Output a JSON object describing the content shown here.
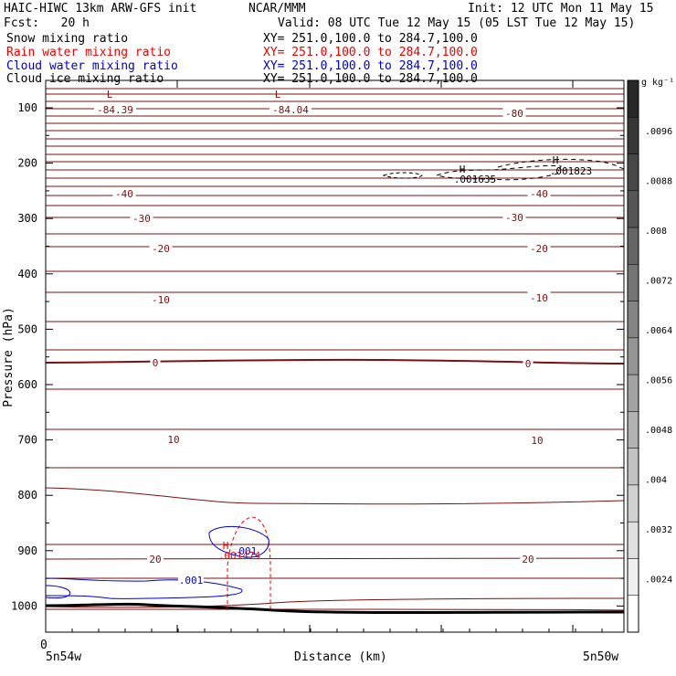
{
  "header": {
    "model": "HAIC-HIWC 13km ARW-GFS init",
    "org": "NCAR/MMM",
    "init": "Init: 12 UTC Mon 11 May 15",
    "fcst": "Fcst:   20 h",
    "valid": "Valid: 08 UTC Tue 12 May 15 (05 LST Tue 12 May 15)"
  },
  "fields": [
    {
      "name": "Snow mixing ratio",
      "xy": "XY= 251.0,100.0 to 284.7,100.0",
      "color": "#000000"
    },
    {
      "name": "Rain water mixing ratio",
      "xy": "XY= 251.0,100.0 to 284.7,100.0",
      "color": "#ee0000"
    },
    {
      "name": "Cloud water mixing ratio",
      "xy": "XY= 251.0,100.0 to 284.7,100.0",
      "color": "#0000cc"
    },
    {
      "name": "Cloud ice mixing ratio",
      "xy": "XY= 251.0,100.0 to 284.7,100.0",
      "color": "#000000"
    }
  ],
  "chart_data": {
    "type": "contour",
    "xlabel": "Distance (km)",
    "ylabel": "Pressure (hPa)",
    "x_ticks": [
      "0"
    ],
    "x_endpoints": [
      "5n54w",
      "5n50w"
    ],
    "y_ticks": [
      100,
      200,
      300,
      400,
      500,
      600,
      700,
      800,
      900,
      1000
    ],
    "ylim": [
      1025,
      0
    ],
    "y_reversed": true,
    "colorbar": {
      "unit": "g kg⁻¹",
      "ticks": [
        ".0096",
        ".0088",
        ".008",
        ".0072",
        ".0064",
        ".0056",
        ".0048",
        ".004",
        ".0032",
        ".0024"
      ]
    },
    "temperature_labels": [
      {
        "value": "-84.39",
        "p": 120,
        "side": "left"
      },
      {
        "value": "-84.04",
        "p": 120,
        "side": "mid"
      },
      {
        "value": "-80",
        "p": 126,
        "side": "right"
      },
      {
        "value": "-40",
        "p": 236,
        "side": "left"
      },
      {
        "value": "-40",
        "p": 238,
        "side": "right"
      },
      {
        "value": "-30",
        "p": 274,
        "side": "left"
      },
      {
        "value": "-30",
        "p": 272,
        "side": "right"
      },
      {
        "value": "-20",
        "p": 318,
        "side": "left"
      },
      {
        "value": "-20",
        "p": 318,
        "side": "right"
      },
      {
        "value": "-10",
        "p": 386,
        "side": "left"
      },
      {
        "value": "-10",
        "p": 383,
        "side": "right"
      },
      {
        "value": "0",
        "p": 557,
        "side": "left"
      },
      {
        "value": "0",
        "p": 557,
        "side": "right"
      },
      {
        "value": "10",
        "p": 708,
        "side": "left"
      },
      {
        "value": "10",
        "p": 708,
        "side": "right"
      },
      {
        "value": "20",
        "p": 921,
        "side": "left"
      },
      {
        "value": "20",
        "p": 921,
        "side": "right"
      }
    ],
    "extrema_labels": [
      {
        "mark": "L",
        "value": "-84.39"
      },
      {
        "mark": "L",
        "value": "-84.04"
      },
      {
        "mark": "H",
        "value": ".001635"
      },
      {
        "mark": "H",
        "value": ".001823"
      },
      {
        "mark": "H",
        "value": ".001474"
      }
    ],
    "cloud_water_label": ".001",
    "cloud_water_label_2": ".001"
  }
}
